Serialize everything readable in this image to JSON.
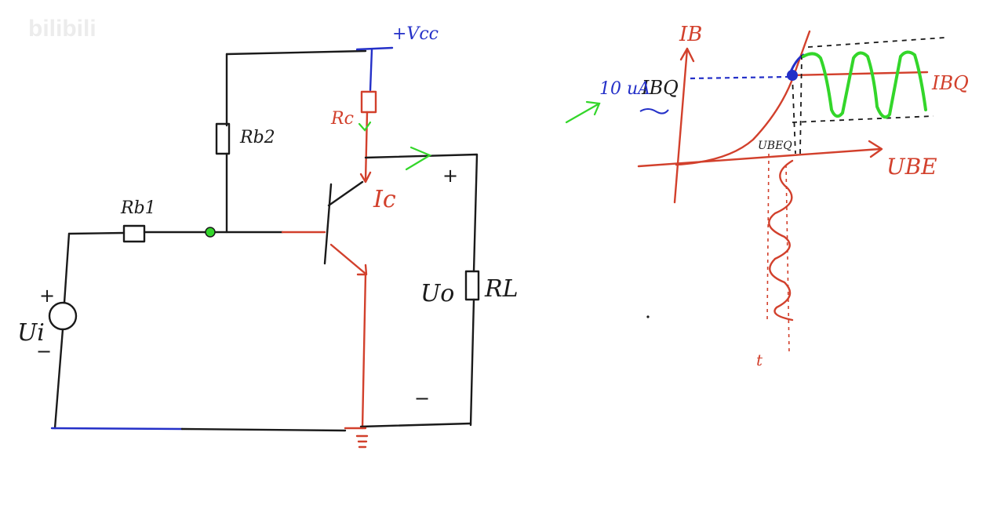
{
  "watermark": "bilibili",
  "circuit": {
    "supply_label": "+Vcc",
    "rb1_label": "Rb1",
    "rb2_label": "Rb2",
    "rc_label": "Rc",
    "rl_label": "RL",
    "ic_label": "Ic",
    "ui_label": "Ui",
    "uo_label": "Uo",
    "plus_sign": "+",
    "minus_sign": "−"
  },
  "graph": {
    "y_axis_label": "IB",
    "x_axis_label": "UBE",
    "ibq_left_label": "IBQ",
    "ibq_right_label": "IBQ",
    "ubeq_label": "UBEQ",
    "current_value": "10 uA",
    "time_label": "t"
  },
  "colors": {
    "ink": "#1a1a1a",
    "red": "#d2402c",
    "blue": "#2430c8",
    "green": "#33d62a"
  }
}
